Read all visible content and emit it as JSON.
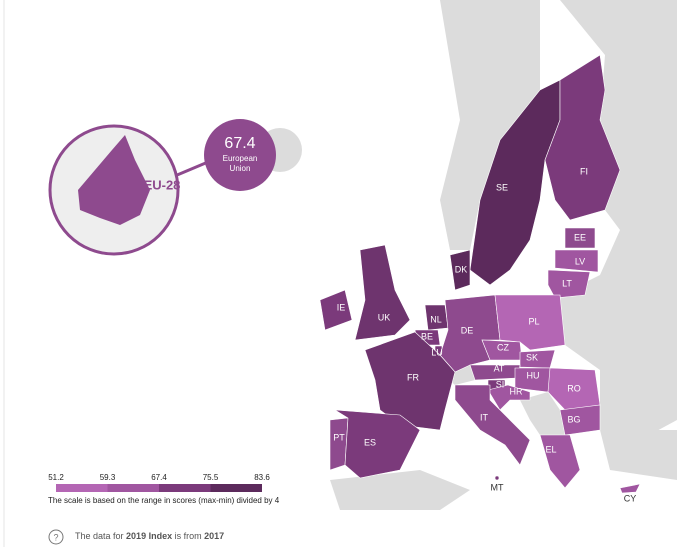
{
  "summary": {
    "value": 67.4,
    "label": "European Union",
    "badge": "EU-28",
    "color": "#8e4a8e"
  },
  "legend": {
    "ticks": [
      51.2,
      59.3,
      67.4,
      75.5,
      83.6
    ],
    "colors": [
      "#b466b4",
      "#a056a0",
      "#7b3a7b",
      "#5c2a5c"
    ],
    "note": "The scale is based on the range in scores (max-min) divided by 4"
  },
  "countries": [
    {
      "code": "SE",
      "color": "#5c2a5c"
    },
    {
      "code": "FI",
      "color": "#7b3a7b"
    },
    {
      "code": "EE",
      "color": "#8e4a8e"
    },
    {
      "code": "LV",
      "color": "#a056a0"
    },
    {
      "code": "LT",
      "color": "#a056a0"
    },
    {
      "code": "DK",
      "color": "#5c2a5c"
    },
    {
      "code": "IE",
      "color": "#7b3a7b"
    },
    {
      "code": "UK",
      "color": "#6e346e"
    },
    {
      "code": "NL",
      "color": "#6e346e"
    },
    {
      "code": "BE",
      "color": "#7b3a7b"
    },
    {
      "code": "LU",
      "color": "#7b3a7b"
    },
    {
      "code": "DE",
      "color": "#8e4a8e"
    },
    {
      "code": "PL",
      "color": "#b466b4"
    },
    {
      "code": "CZ",
      "color": "#a056a0"
    },
    {
      "code": "SK",
      "color": "#a056a0"
    },
    {
      "code": "AT",
      "color": "#8e4a8e"
    },
    {
      "code": "HU",
      "color": "#a056a0"
    },
    {
      "code": "SI",
      "color": "#7b3a7b"
    },
    {
      "code": "HR",
      "color": "#a056a0"
    },
    {
      "code": "FR",
      "color": "#6e346e"
    },
    {
      "code": "RO",
      "color": "#b466b4"
    },
    {
      "code": "BG",
      "color": "#a056a0"
    },
    {
      "code": "IT",
      "color": "#8e4a8e"
    },
    {
      "code": "PT",
      "color": "#8e4a8e"
    },
    {
      "code": "ES",
      "color": "#7b3a7b"
    },
    {
      "code": "EL",
      "color": "#a056a0"
    },
    {
      "code": "MT",
      "color": "#7b3a7b"
    },
    {
      "code": "CY",
      "color": "#a056a0"
    }
  ],
  "footer": {
    "prefix": "The data for",
    "index": "2019 Index",
    "middle": "is from",
    "year": "2017"
  }
}
